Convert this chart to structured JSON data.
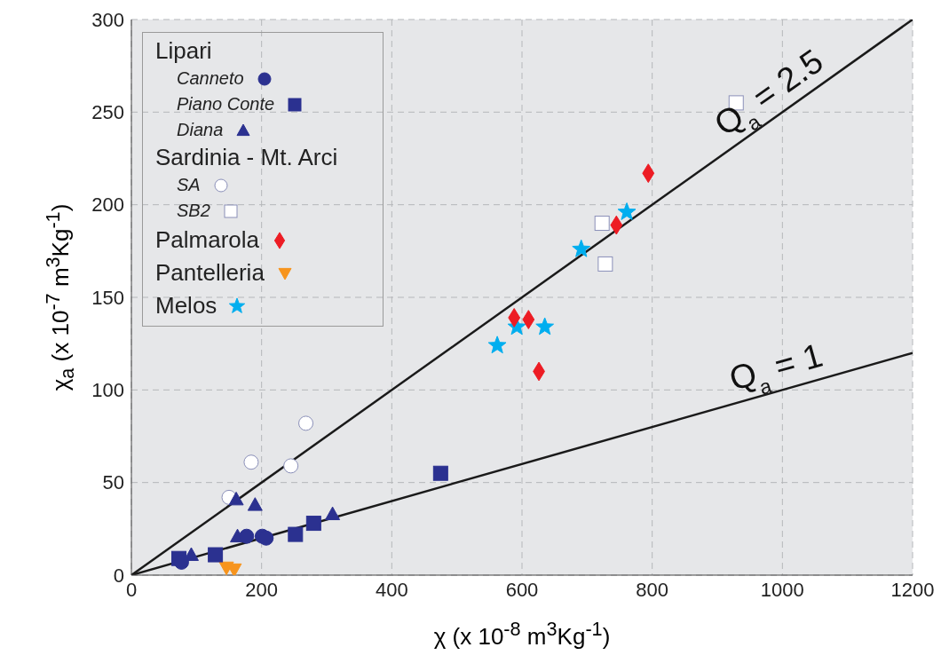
{
  "chart_data": {
    "type": "scatter",
    "xlabel": "χ  (x 10$^{-8}$ m$^{3}$Kg$^{-1}$)",
    "ylabel": "χ$_{a}$  (x 10$^{-7}$ m$^{3}$Kg$^{-1}$)",
    "xlim": [
      0,
      1200
    ],
    "xticks": [
      0,
      200,
      400,
      600,
      800,
      1000,
      1200
    ],
    "ylim": [
      0,
      300
    ],
    "yticks": [
      0,
      50,
      100,
      150,
      200,
      250,
      300
    ],
    "grid": true,
    "legend": "top left",
    "legend_title": "Lipari",
    "annotations": [
      "Sardinia - Mt. Arci",
      {
        "text": "Q$_{a}$ = 2.5",
        "x": 1000,
        "y": 250
      },
      {
        "text": "Q$_{a}$ = 1",
        "x": 1000,
        "y": 100
      }
    ],
    "series": [
      {
        "name": "Canneto",
        "color": "#2b3190",
        "marker": "circle",
        "x": [
          177,
          201,
          207,
          77
        ],
        "values": [
          21,
          21,
          20,
          7
        ]
      },
      {
        "name": "Piano Conte",
        "color": "#2b3190",
        "marker": "square",
        "x": [
          73,
          129,
          252,
          280,
          475
        ],
        "values": [
          9,
          11,
          22,
          28,
          55
        ]
      },
      {
        "name": "Diana",
        "color": "#2b3190",
        "marker": "triangle",
        "x": [
          161,
          190,
          163,
          92,
          309
        ],
        "values": [
          41,
          38,
          21,
          11,
          33
        ]
      },
      {
        "name": "SA",
        "color": "#ffffff",
        "marker": "circle",
        "x": [
          268,
          184,
          245,
          150
        ],
        "values": [
          82,
          61,
          59,
          42
        ]
      },
      {
        "name": "SB2",
        "color": "#ffffff",
        "marker": "square",
        "x": [
          929,
          723,
          728
        ],
        "values": [
          255,
          190,
          168
        ]
      },
      {
        "name": "Palmarola",
        "color": "#ed1c24",
        "marker": "diamond",
        "x": [
          794,
          745,
          588,
          610,
          626
        ],
        "values": [
          217,
          189,
          139,
          138,
          110
        ]
      },
      {
        "name": "Pantelleria",
        "color": "#f7941d",
        "marker": "triangle_down",
        "x": [
          146,
          158
        ],
        "values": [
          4,
          3
        ]
      },
      {
        "name": "Melos",
        "color": "#00aeef",
        "marker": "star",
        "x": [
          761,
          691,
          562,
          592,
          635
        ],
        "values": [
          196,
          176,
          124,
          134,
          134
        ]
      },
      {
        "type": "line",
        "color": "#1a1a1a",
        "x": [
          0,
          1200
        ],
        "values": [
          0,
          300
        ]
      },
      {
        "type": "line",
        "color": "#1a1a1a",
        "x": [
          0,
          1200
        ],
        "values": [
          0,
          120
        ]
      }
    ]
  }
}
